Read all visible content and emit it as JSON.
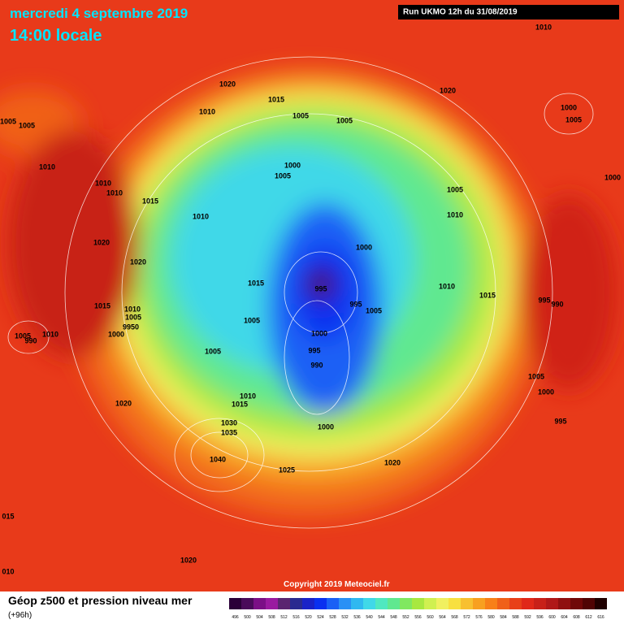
{
  "header": {
    "date": "mercredi 4 septembre 2019",
    "time": "14:00 locale",
    "run": "Run UKMO 12h du 31/08/2019"
  },
  "footer": {
    "title": "Géop z500 et pression niveau mer",
    "lead": "(+96h)",
    "copyright": "Copyright 2019 Meteociel.fr"
  },
  "legend": {
    "labels": [
      496,
      500,
      504,
      508,
      512,
      516,
      520,
      524,
      528,
      532,
      536,
      540,
      544,
      548,
      552,
      556,
      560,
      564,
      568,
      572,
      576,
      580,
      584,
      588,
      592,
      596,
      600,
      604,
      608,
      612,
      616
    ],
    "colors": [
      "#2b0038",
      "#4a0a5a",
      "#7b0f86",
      "#9a1aa0",
      "#5a2570",
      "#2a2a90",
      "#1a22c8",
      "#0a30f0",
      "#1a60f5",
      "#2a90f5",
      "#30b8f0",
      "#40d8e8",
      "#50e8c0",
      "#60e890",
      "#80e860",
      "#a8e840",
      "#d0f050",
      "#f0f060",
      "#f8e040",
      "#f8c030",
      "#f8a020",
      "#f88018",
      "#f06018",
      "#e84018",
      "#e02818",
      "#c82018",
      "#b01818",
      "#901010",
      "#700808",
      "#500404",
      "#200000"
    ]
  },
  "pressure_labels": [
    "1010",
    "1020",
    "1020",
    "1015",
    "1000",
    "1005",
    "1010",
    "1005",
    "1005",
    "1005",
    "1005",
    "1010",
    "1000",
    "1005",
    "1000",
    "1010",
    "1010",
    "1015",
    "1005",
    "1010",
    "1010",
    "1020",
    "1000",
    "1020",
    "1015",
    "995",
    "1010",
    "1015",
    "995",
    "990",
    "1015",
    "995",
    "1005",
    "1010",
    "1005",
    "9950",
    "1005",
    "990",
    "1010",
    "1000",
    "1005",
    "1000",
    "1005",
    "995",
    "990",
    "1005",
    "1000",
    "1010",
    "1015",
    "1020",
    "995",
    "1000",
    "1030",
    "1035",
    "1040",
    "1020",
    "1025",
    "015",
    "1020",
    "010"
  ]
}
